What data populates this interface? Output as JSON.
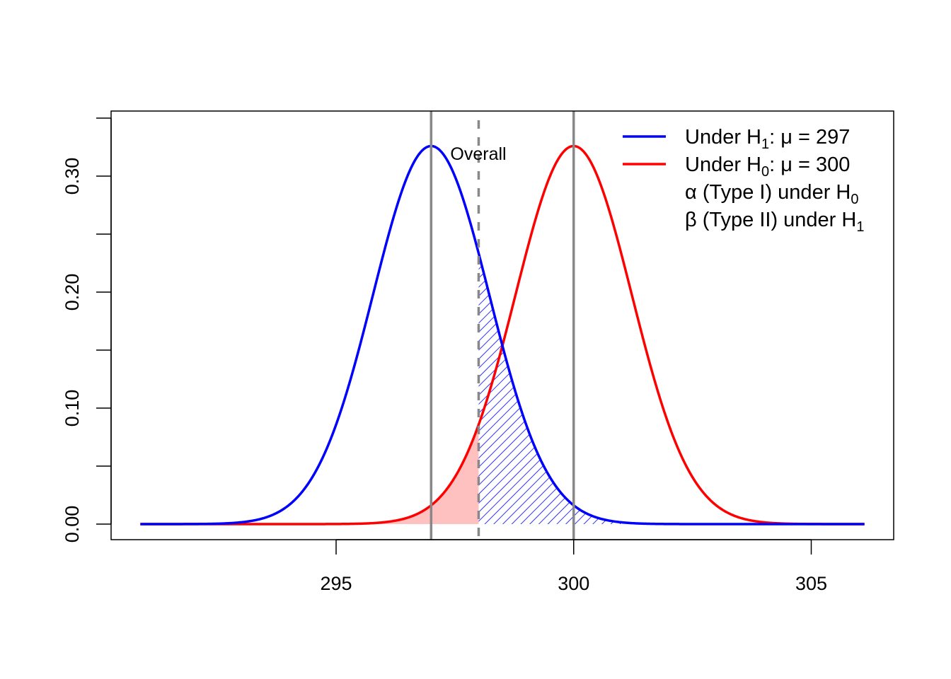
{
  "chart_data": {
    "type": "line",
    "title": "",
    "xlabel": "",
    "ylabel": "",
    "xlim": [
      290.5,
      306.5
    ],
    "ylim": [
      -0.013,
      0.356
    ],
    "x_ticks": [
      295,
      300,
      305
    ],
    "x_tick_labels": [
      "295",
      "300",
      "305"
    ],
    "y_ticks": [
      0.0,
      0.05,
      0.1,
      0.15,
      0.2,
      0.25,
      0.3,
      0.35
    ],
    "y_tick_labels": [
      {
        "value": 0.0,
        "label": "0.00"
      },
      {
        "value": 0.1,
        "label": "0.10"
      },
      {
        "value": 0.2,
        "label": "0.20"
      },
      {
        "value": 0.3,
        "label": "0.30"
      }
    ],
    "grid": false,
    "series": [
      {
        "name": "Under H1: μ = 297",
        "distribution": "normal",
        "mean": 297,
        "sd": 1.224,
        "x_range": [
          290.88,
          303.12
        ],
        "color": "#0000ff"
      },
      {
        "name": "Under H0: μ = 300",
        "distribution": "normal",
        "mean": 300,
        "sd": 1.224,
        "x_range": [
          293.88,
          306.12
        ],
        "color": "#ff0000"
      }
    ],
    "shaded_regions": [
      {
        "name": "alpha (Type I) under H0",
        "under": "H0",
        "x_from": 293.88,
        "x_to": 298,
        "style": "solid fill",
        "color": "#ffc0c0"
      },
      {
        "name": "beta (Type II) under H1",
        "under": "H1",
        "x_from": 298,
        "x_to": 303.12,
        "style": "diagonal hatch",
        "color": "#0000ff"
      }
    ],
    "vertical_lines": [
      {
        "x": 297,
        "style": "solid",
        "color": "#888888"
      },
      {
        "x": 300,
        "style": "solid",
        "color": "#888888"
      },
      {
        "x": 298,
        "style": "dashed",
        "color": "#888888",
        "label": "Overall"
      }
    ],
    "legend": {
      "placement": "top-right",
      "entries": [
        {
          "pre": "Under H",
          "sub": "1",
          "post": ": μ = 297",
          "color": "#0000ff",
          "line": true
        },
        {
          "pre": "Under H",
          "sub": "0",
          "post": ": μ = 300",
          "color": "#ff0000",
          "line": true
        },
        {
          "pre": "α (Type I) under H",
          "sub": "0",
          "post": "",
          "line": false
        },
        {
          "pre": "β (Type II) under H",
          "sub": "1",
          "post": "",
          "line": false
        }
      ]
    }
  }
}
